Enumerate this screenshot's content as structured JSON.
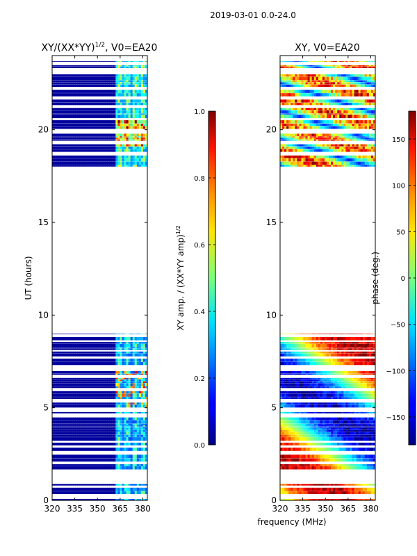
{
  "suptitle": "2019-03-01 0.0-24.0",
  "xlabel": "frequency (MHz)",
  "chart_data": [
    {
      "type": "heatmap",
      "title": "XY/(XX*YY)",
      "title_sup": "1/2",
      "title_rest": ", V0=EA20",
      "ylabel": "UT (hours)",
      "x_ticks": [
        320,
        335,
        350,
        365,
        380
      ],
      "x_tick_labels": [
        "320",
        "335",
        "350",
        "365",
        "380"
      ],
      "y_ticks": [
        0,
        5,
        10,
        15,
        20
      ],
      "y_tick_labels": [
        "0",
        "5",
        "10",
        "15",
        "20"
      ],
      "xlim": [
        320,
        383
      ],
      "ylim": [
        0,
        24
      ],
      "data_bands_hours": [
        [
          0,
          9
        ],
        [
          18,
          23.7
        ]
      ],
      "colorbar": {
        "label": "XY amp. / (XX*YY amp)",
        "label_sup": "1/2",
        "range": [
          0.0,
          1.0
        ],
        "ticks": [
          0.0,
          0.2,
          0.4,
          0.6,
          0.8,
          1.0
        ],
        "tick_labels": [
          "0.0",
          "0.2",
          "0.4",
          "0.6",
          "0.8",
          "1.0"
        ]
      }
    },
    {
      "type": "heatmap",
      "title": "XY, V0=EA20",
      "ylabel": "",
      "x_ticks": [
        320,
        335,
        350,
        365,
        380
      ],
      "x_tick_labels": [
        "320",
        "335",
        "350",
        "365",
        "380"
      ],
      "y_ticks": [
        0,
        5,
        10,
        15,
        20
      ],
      "y_tick_labels": [
        "0",
        "5",
        "10",
        "15",
        "20"
      ],
      "xlim": [
        320,
        383
      ],
      "ylim": [
        0,
        24
      ],
      "data_bands_hours": [
        [
          0,
          9
        ],
        [
          18,
          23.7
        ]
      ],
      "colorbar": {
        "label": "phase (deg.)",
        "range": [
          -180,
          180
        ],
        "ticks": [
          -150,
          -100,
          -50,
          0,
          50,
          100,
          150
        ],
        "tick_labels": [
          "−150",
          "−100",
          "−50",
          "0",
          "50",
          "100",
          "150"
        ]
      }
    }
  ]
}
